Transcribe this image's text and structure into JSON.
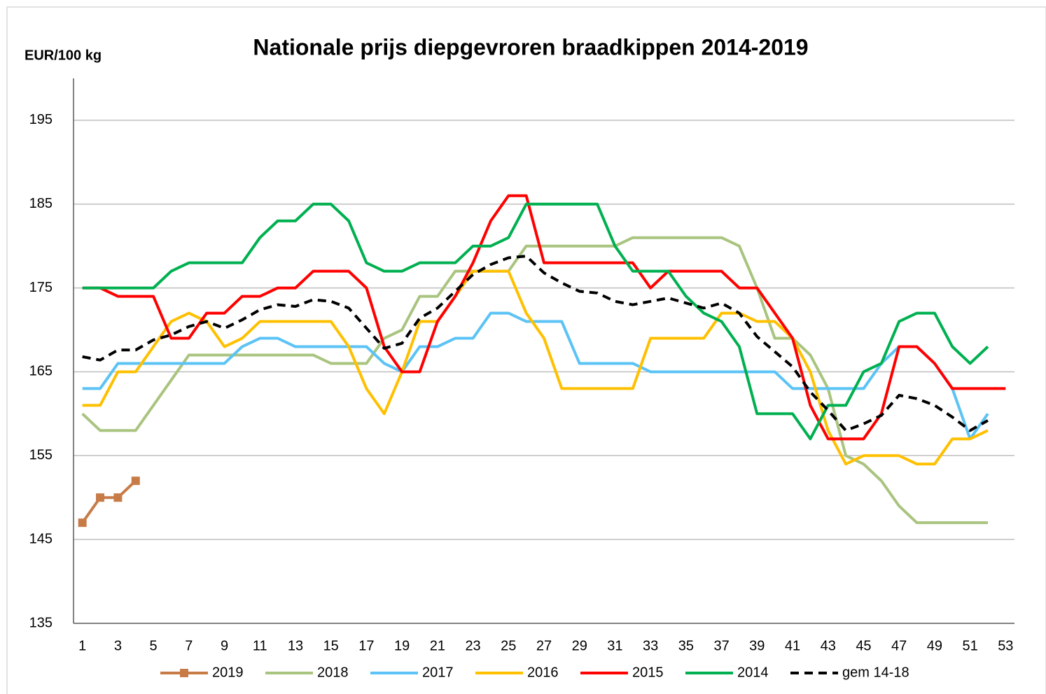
{
  "chart_data": {
    "type": "line",
    "title": "Nationale prijs diepgevroren braadkippen 2014-2019",
    "y_label": "EUR/100 kg",
    "x": [
      1,
      2,
      3,
      4,
      5,
      6,
      7,
      8,
      9,
      10,
      11,
      12,
      13,
      14,
      15,
      16,
      17,
      18,
      19,
      20,
      21,
      22,
      23,
      24,
      25,
      26,
      27,
      28,
      29,
      30,
      31,
      32,
      33,
      34,
      35,
      36,
      37,
      38,
      39,
      40,
      41,
      42,
      43,
      44,
      45,
      46,
      47,
      48,
      49,
      50,
      51,
      52,
      53
    ],
    "xlim": [
      0.5,
      53.5
    ],
    "xticks": [
      1,
      3,
      5,
      7,
      9,
      11,
      13,
      15,
      17,
      19,
      21,
      23,
      25,
      27,
      29,
      31,
      33,
      35,
      37,
      39,
      41,
      43,
      45,
      47,
      49,
      51,
      53
    ],
    "ylim": [
      135,
      200
    ],
    "yticks": [
      135,
      145,
      155,
      165,
      175,
      185,
      195
    ],
    "grid": true,
    "legend": "bottom",
    "series": [
      {
        "name": "2019",
        "color": "#c77c48",
        "marker": "square",
        "values": [
          147,
          150,
          150,
          152,
          null,
          null,
          null,
          null,
          null,
          null,
          null,
          null,
          null,
          null,
          null,
          null,
          null,
          null,
          null,
          null,
          null,
          null,
          null,
          null,
          null,
          null,
          null,
          null,
          null,
          null,
          null,
          null,
          null,
          null,
          null,
          null,
          null,
          null,
          null,
          null,
          null,
          null,
          null,
          null,
          null,
          null,
          null,
          null,
          null,
          null,
          null,
          null,
          null
        ]
      },
      {
        "name": "2018",
        "color": "#a9c47f",
        "values": [
          160,
          158,
          158,
          158,
          161,
          164,
          167,
          167,
          167,
          167,
          167,
          167,
          167,
          167,
          166,
          166,
          166,
          169,
          170,
          174,
          174,
          177,
          177,
          177,
          177,
          180,
          180,
          180,
          180,
          180,
          180,
          181,
          181,
          181,
          181,
          181,
          181,
          180,
          175,
          169,
          169,
          167,
          163,
          155,
          154,
          152,
          149,
          147,
          147,
          147,
          147,
          147,
          null
        ]
      },
      {
        "name": "2017",
        "color": "#5bc3f5",
        "values": [
          163,
          163,
          166,
          166,
          166,
          166,
          166,
          166,
          166,
          168,
          169,
          169,
          168,
          168,
          168,
          168,
          168,
          166,
          165,
          168,
          168,
          169,
          169,
          172,
          172,
          171,
          171,
          171,
          166,
          166,
          166,
          166,
          165,
          165,
          165,
          165,
          165,
          165,
          165,
          165,
          163,
          163,
          163,
          163,
          163,
          166,
          168,
          168,
          166,
          163,
          157,
          160,
          null
        ]
      },
      {
        "name": "2016",
        "color": "#ffc000",
        "values": [
          161,
          161,
          165,
          165,
          168,
          171,
          172,
          171,
          168,
          169,
          171,
          171,
          171,
          171,
          171,
          168,
          163,
          160,
          165,
          171,
          171,
          174,
          177,
          177,
          177,
          172,
          169,
          163,
          163,
          163,
          163,
          163,
          169,
          169,
          169,
          169,
          172,
          172,
          171,
          171,
          169,
          165,
          158,
          154,
          155,
          155,
          155,
          154,
          154,
          157,
          157,
          158,
          null
        ]
      },
      {
        "name": "2015",
        "color": "#ff0000",
        "values": [
          175,
          175,
          174,
          174,
          174,
          169,
          169,
          172,
          172,
          174,
          174,
          175,
          175,
          177,
          177,
          177,
          175,
          168,
          165,
          165,
          171,
          174,
          178,
          183,
          186,
          186,
          178,
          178,
          178,
          178,
          178,
          178,
          175,
          177,
          177,
          177,
          177,
          175,
          175,
          172,
          169,
          161,
          157,
          157,
          157,
          160,
          168,
          168,
          166,
          163,
          163,
          163,
          163
        ]
      },
      {
        "name": "2014",
        "color": "#00b050",
        "values": [
          175,
          175,
          175,
          175,
          175,
          177,
          178,
          178,
          178,
          178,
          181,
          183,
          183,
          185,
          185,
          183,
          178,
          177,
          177,
          178,
          178,
          178,
          180,
          180,
          181,
          185,
          185,
          185,
          185,
          185,
          180,
          177,
          177,
          177,
          174,
          172,
          171,
          168,
          160,
          160,
          160,
          157,
          161,
          161,
          165,
          166,
          171,
          172,
          172,
          168,
          166,
          168,
          null
        ]
      },
      {
        "name": "gem 14-18",
        "color": "#000000",
        "style": "dashed",
        "values": [
          166.8,
          166.4,
          167.6,
          167.6,
          168.8,
          169.4,
          170.4,
          171,
          170.2,
          171.2,
          172.4,
          173,
          172.8,
          173.6,
          173.4,
          172.6,
          170.2,
          167.8,
          168.4,
          171.4,
          172.6,
          174.6,
          176.6,
          177.8,
          178.6,
          178.8,
          176.8,
          175.6,
          174.6,
          174.4,
          173.4,
          173,
          173.4,
          173.8,
          173.2,
          172.6,
          173.2,
          172,
          169.2,
          167.4,
          165.6,
          162.6,
          160.4,
          158,
          158.8,
          159.8,
          162.2,
          161.8,
          161,
          159.6,
          158,
          159.2,
          null
        ]
      }
    ]
  }
}
